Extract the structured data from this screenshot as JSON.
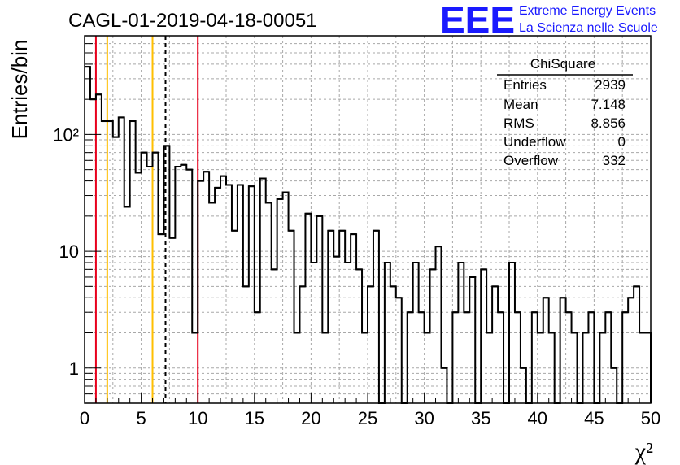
{
  "header": {
    "title": "CAGL-01-2019-04-18-00051",
    "logo_text": "EEE",
    "logo_line1": "Extreme Energy Events",
    "logo_line2": "La Scienza nelle Scuole",
    "logo_color": "#1a1aff"
  },
  "stats_box": {
    "title": "ChiSquare",
    "rows": [
      {
        "label": "Entries",
        "value": "2939"
      },
      {
        "label": "Mean",
        "value": "7.148"
      },
      {
        "label": "RMS",
        "value": "8.856"
      },
      {
        "label": "Underflow",
        "value": "0"
      },
      {
        "label": "Overflow",
        "value": "332"
      }
    ]
  },
  "chart_data": {
    "type": "bar",
    "title": "CAGL-01-2019-04-18-00051",
    "xlabel": "χ²",
    "ylabel": "Entries/bin",
    "xlim": [
      0,
      50
    ],
    "ylim": [
      0.5,
      700
    ],
    "yscale": "log",
    "grid": true,
    "bin_width": 0.5,
    "x_ticks": [
      "0",
      "5",
      "10",
      "15",
      "20",
      "25",
      "30",
      "35",
      "40",
      "45",
      "50"
    ],
    "y_ticks": [
      {
        "value": 1,
        "label": "1"
      },
      {
        "value": 10,
        "label": "10"
      },
      {
        "value": 100,
        "label": "10²"
      }
    ],
    "values": [
      380,
      200,
      220,
      130,
      130,
      95,
      140,
      24,
      130,
      47,
      70,
      53,
      70,
      14,
      80,
      13,
      53,
      55,
      50,
      2,
      40,
      48,
      26,
      35,
      44,
      37,
      15,
      37,
      5,
      36,
      3,
      42,
      26,
      7,
      28,
      32,
      15,
      2,
      5,
      21,
      8,
      20,
      2,
      15,
      9,
      15,
      8,
      14,
      7,
      2,
      5,
      15,
      0.3,
      8,
      5,
      4,
      0.3,
      3,
      8,
      3,
      2,
      7,
      11,
      1,
      0.3,
      3,
      8,
      3,
      6,
      0.3,
      7,
      2,
      5,
      3,
      0.3,
      8,
      3,
      1,
      0.3,
      3,
      2,
      4,
      2,
      0.3,
      4,
      3,
      2,
      0.3,
      2,
      3,
      0.3,
      2,
      3,
      1,
      0.3,
      3,
      4,
      5,
      2,
      2
    ],
    "vertical_lines": [
      {
        "x": 1,
        "color": "#e8001c",
        "style": "solid"
      },
      {
        "x": 2,
        "color": "#ffbf00",
        "style": "solid"
      },
      {
        "x": 6,
        "color": "#ffbf00",
        "style": "solid"
      },
      {
        "x": 7.148,
        "color": "#000000",
        "style": "dashed"
      },
      {
        "x": 10,
        "color": "#e8001c",
        "style": "solid"
      }
    ]
  }
}
